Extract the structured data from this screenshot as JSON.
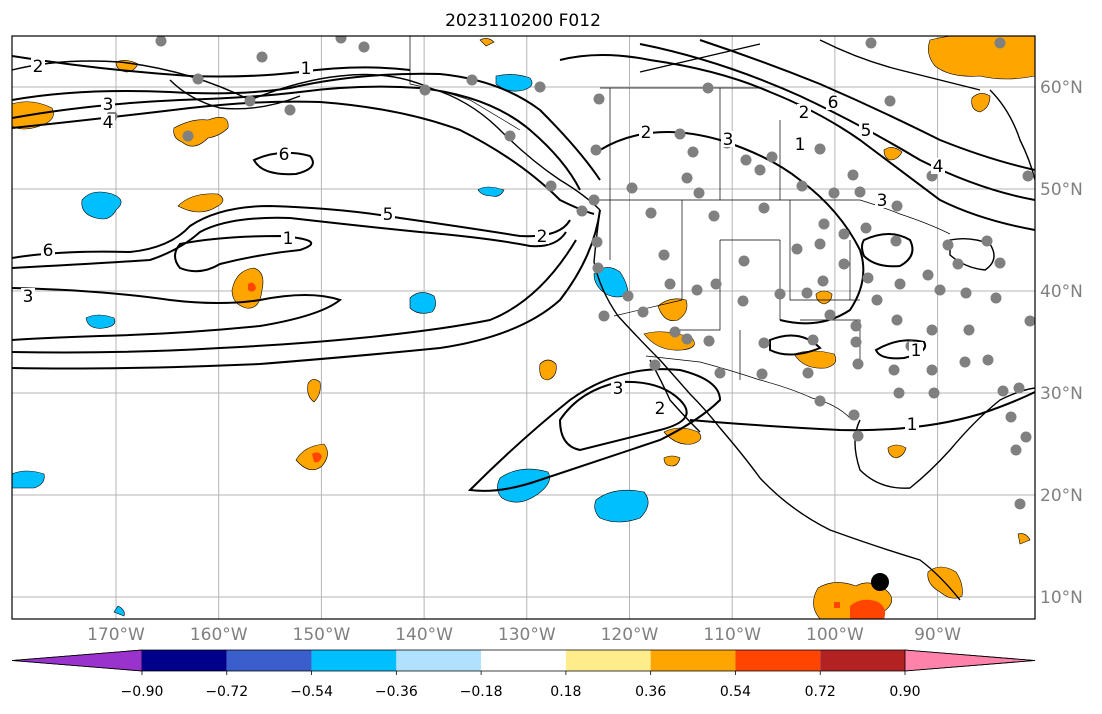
{
  "title": "2023110200 F012",
  "map": {
    "lat_labels": [
      "60°N",
      "50°N",
      "40°N",
      "30°N",
      "20°N",
      "10°N"
    ],
    "lon_labels": [
      "170°W",
      "160°W",
      "150°W",
      "140°W",
      "130°W",
      "120°W",
      "110°W",
      "100°W",
      "90°W"
    ],
    "contour_labels": [
      "1",
      "2",
      "3",
      "4",
      "5",
      "6"
    ],
    "contour_label_instances": [
      {
        "text": "1"
      },
      {
        "text": "2"
      },
      {
        "text": "3"
      },
      {
        "text": "4"
      },
      {
        "text": "6"
      },
      {
        "text": "5"
      },
      {
        "text": "1"
      },
      {
        "text": "2"
      },
      {
        "text": "6"
      },
      {
        "text": "3"
      },
      {
        "text": "2"
      },
      {
        "text": "2"
      },
      {
        "text": "3"
      },
      {
        "text": "6"
      },
      {
        "text": "5"
      },
      {
        "text": "4"
      },
      {
        "text": "3"
      },
      {
        "text": "1"
      },
      {
        "text": "1"
      },
      {
        "text": "3"
      },
      {
        "text": "2"
      },
      {
        "text": "1"
      }
    ]
  },
  "colorbar": {
    "tick_labels": [
      "−0.90",
      "−0.72",
      "−0.54",
      "−0.36",
      "−0.18",
      "0.18",
      "0.36",
      "0.54",
      "0.72",
      "0.90"
    ],
    "colors": [
      "#9a32cd",
      "#00008b",
      "#3a5fcd",
      "#00bfff",
      "#b0e2ff",
      "#ffffff",
      "#ffec8b",
      "#ffa500",
      "#ff4500",
      "#b22222",
      "#ff82ab"
    ]
  },
  "colors": {
    "contour": "#000000",
    "coast": "#000000",
    "grid": "#a9a9a9",
    "station_dot": "#808080",
    "marker": "#000000",
    "shade_cyan": "#00bfff",
    "shade_orange": "#ffa500",
    "shade_red": "#ff4500",
    "axis_label": "#808080"
  }
}
